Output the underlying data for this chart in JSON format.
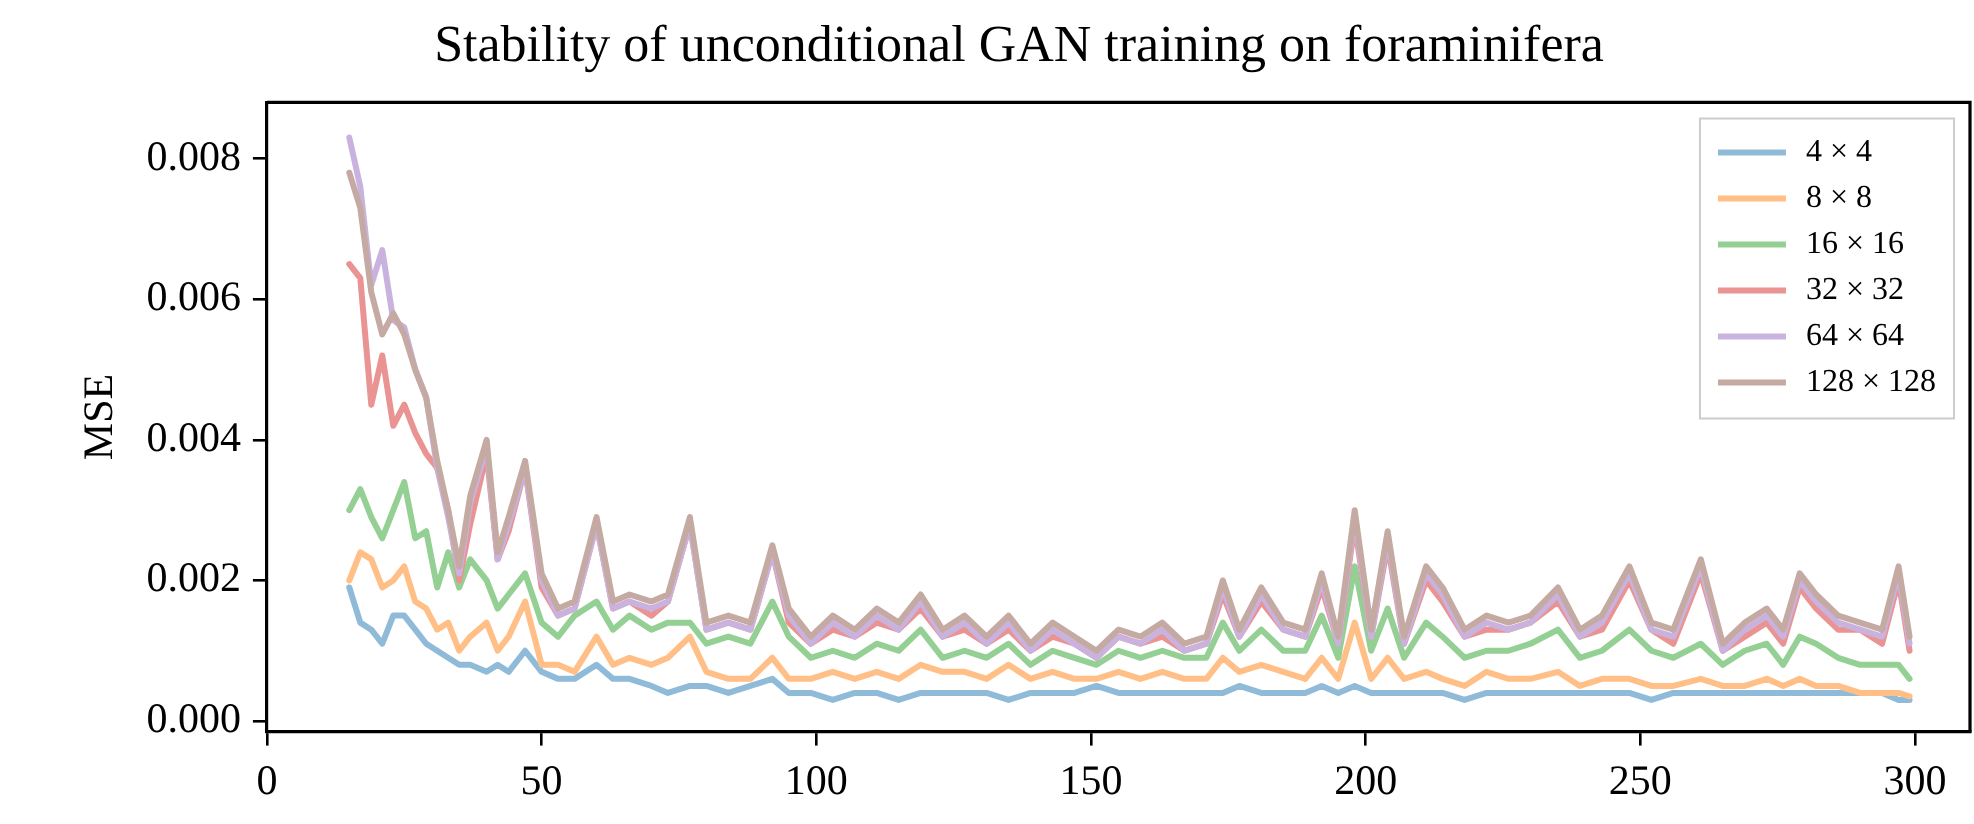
{
  "chart_data": {
    "type": "line",
    "title": "Stability of unconditional GAN training on foraminifera",
    "ylabel": "MSE",
    "x": [
      15,
      17,
      19,
      21,
      23,
      25,
      27,
      29,
      31,
      33,
      35,
      37,
      40,
      42,
      44,
      47,
      50,
      53,
      56,
      60,
      63,
      66,
      70,
      73,
      77,
      80,
      84,
      88,
      92,
      95,
      99,
      103,
      107,
      111,
      115,
      119,
      123,
      127,
      131,
      135,
      139,
      143,
      147,
      151,
      155,
      159,
      163,
      167,
      171,
      174,
      177,
      181,
      185,
      189,
      192,
      195,
      198,
      201,
      204,
      207,
      211,
      214,
      218,
      222,
      226,
      230,
      235,
      239,
      243,
      248,
      252,
      256,
      261,
      265,
      269,
      273,
      276,
      279,
      282,
      286,
      290,
      294,
      297,
      299
    ],
    "xlim": [
      0,
      310
    ],
    "xticks": [
      0,
      50,
      100,
      150,
      200,
      250,
      300
    ],
    "ylim": [
      -0.00015,
      0.0088
    ],
    "yticks": [
      {
        "value": 0,
        "label": "0.000"
      },
      {
        "value": 0.002,
        "label": "0.002"
      },
      {
        "value": 0.004,
        "label": "0.004"
      },
      {
        "value": 0.006,
        "label": "0.006"
      },
      {
        "value": 0.008,
        "label": "0.008"
      }
    ],
    "legend": "top right",
    "marker": "none",
    "line_style": "solid",
    "series": [
      {
        "name": "4 × 4",
        "color": "#8fbbd9",
        "values": [
          0.0019,
          0.0014,
          0.0013,
          0.0011,
          0.0015,
          0.0015,
          0.0013,
          0.0011,
          0.001,
          0.0009,
          0.0008,
          0.0008,
          0.0007,
          0.0008,
          0.0007,
          0.001,
          0.0007,
          0.0006,
          0.0006,
          0.0008,
          0.0006,
          0.0006,
          0.0005,
          0.0004,
          0.0005,
          0.0005,
          0.0004,
          0.0005,
          0.0006,
          0.0004,
          0.0004,
          0.0003,
          0.0004,
          0.0004,
          0.0003,
          0.0004,
          0.0004,
          0.0004,
          0.0004,
          0.0003,
          0.0004,
          0.0004,
          0.0004,
          0.0005,
          0.0004,
          0.0004,
          0.0004,
          0.0004,
          0.0004,
          0.0004,
          0.0005,
          0.0004,
          0.0004,
          0.0004,
          0.0005,
          0.0004,
          0.0005,
          0.0004,
          0.0004,
          0.0004,
          0.0004,
          0.0004,
          0.0003,
          0.0004,
          0.0004,
          0.0004,
          0.0004,
          0.0004,
          0.0004,
          0.0004,
          0.0003,
          0.0004,
          0.0004,
          0.0004,
          0.0004,
          0.0004,
          0.0004,
          0.0004,
          0.0004,
          0.0004,
          0.0004,
          0.0004,
          0.0003,
          0.0003
        ]
      },
      {
        "name": "8 × 8",
        "color": "#ffbf86",
        "values": [
          0.002,
          0.0024,
          0.0023,
          0.0019,
          0.002,
          0.0022,
          0.0017,
          0.0016,
          0.0013,
          0.0014,
          0.001,
          0.0012,
          0.0014,
          0.001,
          0.0012,
          0.0017,
          0.0008,
          0.0008,
          0.0007,
          0.0012,
          0.0008,
          0.0009,
          0.0008,
          0.0009,
          0.0012,
          0.0007,
          0.0006,
          0.0006,
          0.0009,
          0.0006,
          0.0006,
          0.0007,
          0.0006,
          0.0007,
          0.0006,
          0.0008,
          0.0007,
          0.0007,
          0.0006,
          0.0008,
          0.0006,
          0.0007,
          0.0006,
          0.0006,
          0.0007,
          0.0006,
          0.0007,
          0.0006,
          0.0006,
          0.0009,
          0.0007,
          0.0008,
          0.0007,
          0.0006,
          0.0009,
          0.0006,
          0.0014,
          0.0006,
          0.0009,
          0.0006,
          0.0007,
          0.0006,
          0.0005,
          0.0007,
          0.0006,
          0.0006,
          0.0007,
          0.0005,
          0.0006,
          0.0006,
          0.0005,
          0.0005,
          0.0006,
          0.0005,
          0.0005,
          0.0006,
          0.0005,
          0.0006,
          0.0005,
          0.0005,
          0.0004,
          0.0004,
          0.0004,
          0.00035
        ]
      },
      {
        "name": "16 × 16",
        "color": "#94cf94",
        "values": [
          0.003,
          0.0033,
          0.0029,
          0.0026,
          0.003,
          0.0034,
          0.0026,
          0.0027,
          0.0019,
          0.0024,
          0.0019,
          0.0023,
          0.002,
          0.0016,
          0.0018,
          0.0021,
          0.0014,
          0.0012,
          0.0015,
          0.0017,
          0.0013,
          0.0015,
          0.0013,
          0.0014,
          0.0014,
          0.0011,
          0.0012,
          0.0011,
          0.0017,
          0.0012,
          0.0009,
          0.001,
          0.0009,
          0.0011,
          0.001,
          0.0013,
          0.0009,
          0.001,
          0.0009,
          0.0011,
          0.0008,
          0.001,
          0.0009,
          0.0008,
          0.001,
          0.0009,
          0.001,
          0.0009,
          0.0009,
          0.0014,
          0.001,
          0.0013,
          0.001,
          0.001,
          0.0015,
          0.0009,
          0.0022,
          0.001,
          0.0016,
          0.0009,
          0.0014,
          0.0012,
          0.0009,
          0.001,
          0.001,
          0.0011,
          0.0013,
          0.0009,
          0.001,
          0.0013,
          0.001,
          0.0009,
          0.0011,
          0.0008,
          0.001,
          0.0011,
          0.0008,
          0.0012,
          0.0011,
          0.0009,
          0.0008,
          0.0008,
          0.0008,
          0.0006
        ]
      },
      {
        "name": "32 × 32",
        "color": "#ea9393",
        "values": [
          0.0065,
          0.0063,
          0.0045,
          0.0052,
          0.0042,
          0.0045,
          0.0041,
          0.0038,
          0.0036,
          0.003,
          0.002,
          0.0028,
          0.0038,
          0.0023,
          0.0027,
          0.0036,
          0.0019,
          0.0015,
          0.0016,
          0.0028,
          0.0016,
          0.0017,
          0.0015,
          0.0017,
          0.0028,
          0.0013,
          0.0014,
          0.0013,
          0.0024,
          0.0014,
          0.0011,
          0.0013,
          0.0012,
          0.0014,
          0.0013,
          0.0016,
          0.0012,
          0.0013,
          0.0011,
          0.0013,
          0.001,
          0.0012,
          0.0011,
          0.0009,
          0.0012,
          0.0011,
          0.0012,
          0.001,
          0.0011,
          0.0018,
          0.0012,
          0.0017,
          0.0013,
          0.0012,
          0.0019,
          0.0011,
          0.0028,
          0.0012,
          0.0025,
          0.0011,
          0.002,
          0.0017,
          0.0012,
          0.0013,
          0.0013,
          0.0014,
          0.0017,
          0.0012,
          0.0013,
          0.002,
          0.0013,
          0.0011,
          0.0021,
          0.001,
          0.0012,
          0.0014,
          0.0011,
          0.0019,
          0.0016,
          0.0013,
          0.0013,
          0.0011,
          0.002,
          0.001
        ]
      },
      {
        "name": "64 × 64",
        "color": "#c9b3de",
        "values": [
          0.0083,
          0.0076,
          0.0062,
          0.0067,
          0.0057,
          0.0056,
          0.005,
          0.0046,
          0.0036,
          0.0029,
          0.0021,
          0.0031,
          0.0039,
          0.0023,
          0.0028,
          0.0036,
          0.002,
          0.0015,
          0.0016,
          0.0028,
          0.0016,
          0.0017,
          0.0016,
          0.0017,
          0.0028,
          0.0013,
          0.0014,
          0.0013,
          0.0024,
          0.0015,
          0.0011,
          0.0014,
          0.0012,
          0.0015,
          0.0013,
          0.0017,
          0.0012,
          0.0014,
          0.0011,
          0.0014,
          0.001,
          0.0013,
          0.0011,
          0.0009,
          0.0012,
          0.0011,
          0.0013,
          0.001,
          0.0011,
          0.0019,
          0.0012,
          0.0018,
          0.0013,
          0.0012,
          0.002,
          0.0011,
          0.0029,
          0.0012,
          0.0026,
          0.0011,
          0.0021,
          0.0018,
          0.0012,
          0.0014,
          0.0013,
          0.0014,
          0.0018,
          0.0012,
          0.0014,
          0.0021,
          0.0013,
          0.0012,
          0.0022,
          0.001,
          0.0013,
          0.0015,
          0.0012,
          0.002,
          0.0017,
          0.0014,
          0.0013,
          0.0012,
          0.0021,
          0.0011
        ]
      },
      {
        "name": "128 × 128",
        "color": "#c5a9a3",
        "values": [
          0.0078,
          0.0073,
          0.0061,
          0.0055,
          0.0058,
          0.0055,
          0.005,
          0.0046,
          0.0037,
          0.003,
          0.0022,
          0.0032,
          0.004,
          0.0024,
          0.0029,
          0.0037,
          0.0021,
          0.0016,
          0.0017,
          0.0029,
          0.0017,
          0.0018,
          0.0017,
          0.0018,
          0.0029,
          0.0014,
          0.0015,
          0.0014,
          0.0025,
          0.0016,
          0.0012,
          0.0015,
          0.0013,
          0.0016,
          0.0014,
          0.0018,
          0.0013,
          0.0015,
          0.0012,
          0.0015,
          0.0011,
          0.0014,
          0.0012,
          0.001,
          0.0013,
          0.0012,
          0.0014,
          0.0011,
          0.0012,
          0.002,
          0.0013,
          0.0019,
          0.0014,
          0.0013,
          0.0021,
          0.0012,
          0.003,
          0.0013,
          0.0027,
          0.0012,
          0.0022,
          0.0019,
          0.0013,
          0.0015,
          0.0014,
          0.0015,
          0.0019,
          0.0013,
          0.0015,
          0.0022,
          0.0014,
          0.0013,
          0.0023,
          0.0011,
          0.0014,
          0.0016,
          0.0013,
          0.0021,
          0.0018,
          0.0015,
          0.0014,
          0.0013,
          0.0022,
          0.0012
        ]
      }
    ]
  }
}
